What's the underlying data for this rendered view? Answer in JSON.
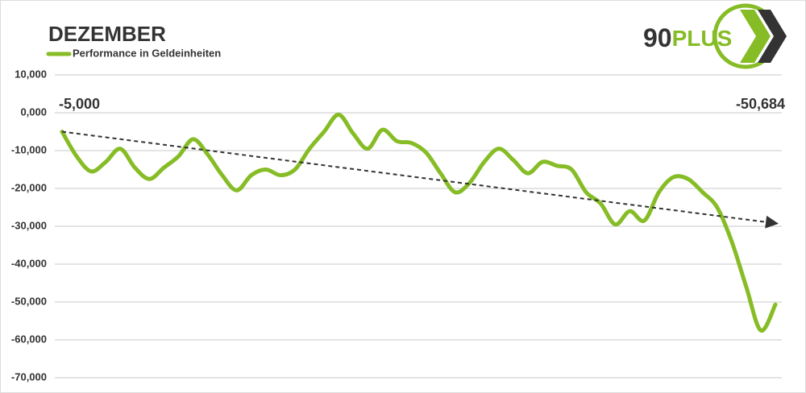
{
  "chart_data": {
    "type": "line",
    "title": "DEZEMBER",
    "logo": [
      "90",
      "PLUS"
    ],
    "categories": [
      null,
      null,
      null,
      null,
      null,
      null,
      null,
      null,
      null,
      null,
      null,
      null,
      null,
      null,
      null,
      null,
      null,
      null,
      null,
      null,
      null,
      null,
      null,
      null,
      null,
      null,
      null,
      null,
      null,
      null,
      null,
      null,
      null,
      null,
      null,
      null,
      null,
      null,
      null,
      null,
      null,
      null,
      null,
      null,
      null,
      null,
      null,
      null,
      null,
      null
    ],
    "series": [
      {
        "name": "Performance in Geldeinheiten",
        "color": "#86bc25",
        "values": [
          -5000,
          -11500,
          -15500,
          -13000,
          -9500,
          -14500,
          -17500,
          -14500,
          -11500,
          -7000,
          -11000,
          -16500,
          -20500,
          -16500,
          -15000,
          -16500,
          -15000,
          -9500,
          -5000,
          -500,
          -5500,
          -9500,
          -4500,
          -7500,
          -8000,
          -10500,
          -16000,
          -21000,
          -18500,
          -13000,
          -9500,
          -12500,
          -16000,
          -13000,
          -14000,
          -15000,
          -21000,
          -24000,
          -29500,
          -26000,
          -28500,
          -21000,
          -17000,
          -17500,
          -21000,
          -25000,
          -34000,
          -46000,
          -57500,
          -50684
        ],
        "value_labels": [
          "-5,000",
          null,
          null,
          null,
          null,
          null,
          null,
          null,
          null,
          null,
          null,
          null,
          null,
          null,
          null,
          null,
          null,
          null,
          null,
          null,
          null,
          null,
          null,
          null,
          null,
          null,
          null,
          null,
          null,
          null,
          null,
          null,
          null,
          null,
          null,
          null,
          null,
          null,
          null,
          null,
          null,
          null,
          null,
          null,
          null,
          null,
          null,
          null,
          null,
          "-50,684"
        ]
      }
    ],
    "trendline": {
      "start": -5000,
      "end": -29200,
      "color": "#333333"
    },
    "ylim": [
      -70000,
      10000
    ],
    "yticks": [
      {
        "value": 10000,
        "label": "10,000"
      },
      {
        "value": 0,
        "label": "0,000"
      },
      {
        "value": -10000,
        "label": "-10,000"
      },
      {
        "value": -20000,
        "label": "-20,000"
      },
      {
        "value": -30000,
        "label": "-30,000"
      },
      {
        "value": -40000,
        "label": "-40,000"
      },
      {
        "value": -50000,
        "label": "-50,000"
      },
      {
        "value": -60000,
        "label": "-60,000"
      },
      {
        "value": -70000,
        "label": "-70,000"
      }
    ],
    "grid": true
  }
}
